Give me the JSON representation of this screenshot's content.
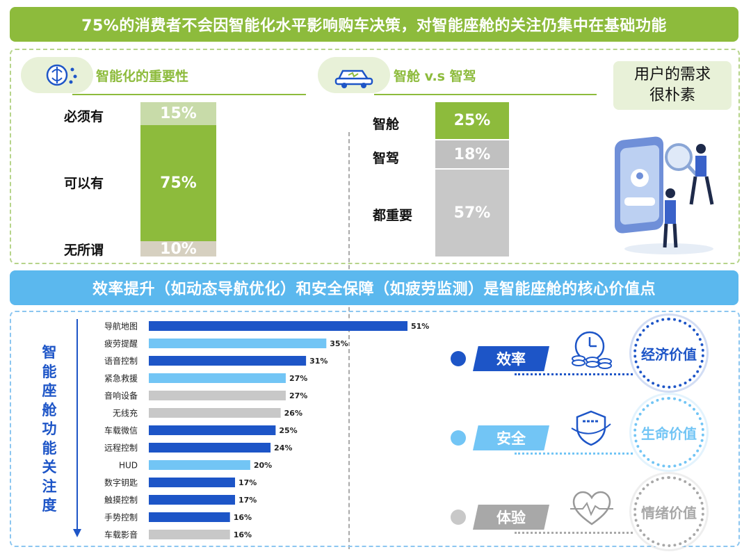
{
  "top_banner": {
    "text": "75%的消费者不会因智能化水平影响购车决策，对智能座舱的关注仍集中在基础功能",
    "color": "#8dbb3c"
  },
  "importance": {
    "title": "智能化的重要性",
    "icon": "brain-chip-icon",
    "segments": [
      {
        "label": "必须有",
        "value": "15%",
        "color": "#c8dba9"
      },
      {
        "label": "可以有",
        "value": "75%",
        "color": "#8dbb3c"
      },
      {
        "label": "无所谓",
        "value": "10%",
        "color": "#d6d0c0"
      }
    ]
  },
  "cabin_vs_drive": {
    "title": "智舱 v.s 智驾",
    "icon": "smart-car-icon",
    "segments": [
      {
        "label": "智舱",
        "value": "25%",
        "color": "#8dbb3c"
      },
      {
        "label": "智驾",
        "value": "18%",
        "color": "#c0c0c0"
      },
      {
        "label": "都重要",
        "value": "57%",
        "color": "#c8c8c8"
      }
    ]
  },
  "user_need": {
    "line1": "用户的需求",
    "line2": "很朴素"
  },
  "mid_banner": {
    "text": "效率提升（如动态导航优化）和安全保障（如疲劳监测）是智能座舱的核心价值点",
    "color": "#5bb8ee"
  },
  "vertical_title": "智能座舱功能关注度",
  "chart_data": {
    "type": "bar",
    "orientation": "horizontal",
    "title": "智能座舱功能关注度",
    "categories": [
      "导航地图",
      "疲劳提醒",
      "语音控制",
      "紧急救援",
      "音响设备",
      "无线充",
      "车载微信",
      "远程控制",
      "HUD",
      "数字钥匙",
      "触摸控制",
      "手势控制",
      "车载影音"
    ],
    "values": [
      51,
      35,
      31,
      27,
      27,
      26,
      25,
      24,
      20,
      17,
      17,
      16,
      16
    ],
    "value_labels": [
      "51%",
      "35%",
      "31%",
      "27%",
      "27%",
      "26%",
      "25%",
      "24%",
      "20%",
      "17%",
      "17%",
      "16%",
      "16%"
    ],
    "bar_colors": [
      "#1d55c7",
      "#72c5f5",
      "#1d55c7",
      "#72c5f5",
      "#c8c8c8",
      "#c8c8c8",
      "#1d55c7",
      "#1d55c7",
      "#72c5f5",
      "#1d55c7",
      "#1d55c7",
      "#1d55c7",
      "#c8c8c8"
    ],
    "unit": "%",
    "xlim": [
      0,
      51
    ]
  },
  "values_list": [
    {
      "label": "效率",
      "value": "经济价值",
      "icon": "clock-coins-icon",
      "color": "#1d55c7",
      "dot_color": "#1d55c7"
    },
    {
      "label": "安全",
      "value": "生命价值",
      "icon": "shield-icon",
      "color": "#72c5f5",
      "dot_color": "#72c5f5"
    },
    {
      "label": "体验",
      "value": "情绪价值",
      "icon": "heart-pulse-icon",
      "color": "#a8a8a8",
      "dot_color": "#c8c8c8"
    }
  ]
}
